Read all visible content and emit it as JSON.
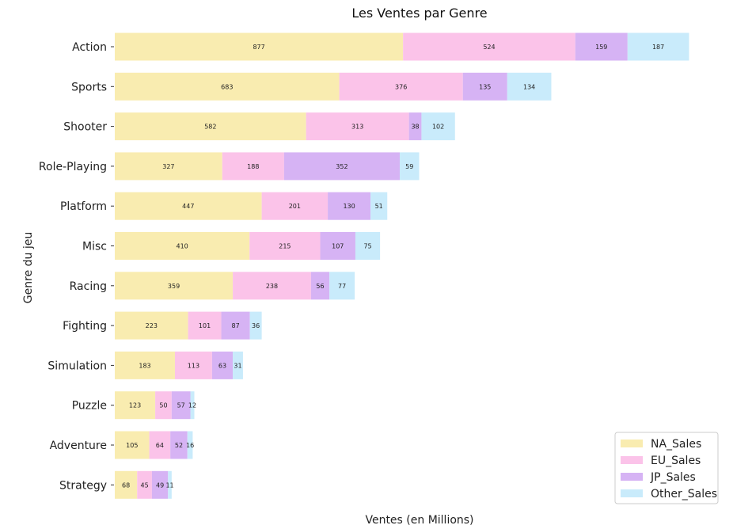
{
  "chart_data": {
    "type": "bar",
    "orientation": "horizontal",
    "stacked": true,
    "title": "Les Ventes par Genre",
    "xlabel": "Ventes (en Millions)",
    "ylabel": "Genre du jeu",
    "categories": [
      "Action",
      "Sports",
      "Shooter",
      "Role-Playing",
      "Platform",
      "Misc",
      "Racing",
      "Fighting",
      "Simulation",
      "Puzzle",
      "Adventure",
      "Strategy"
    ],
    "series": [
      {
        "name": "NA_Sales",
        "color": "#f9ecb0",
        "values": [
          877,
          683,
          582,
          327,
          447,
          410,
          359,
          223,
          183,
          123,
          105,
          68
        ]
      },
      {
        "name": "EU_Sales",
        "color": "#fbc3e9",
        "values": [
          524,
          376,
          313,
          188,
          201,
          215,
          238,
          101,
          113,
          50,
          64,
          45
        ]
      },
      {
        "name": "JP_Sales",
        "color": "#d6b3f4",
        "values": [
          159,
          135,
          38,
          352,
          130,
          107,
          56,
          87,
          63,
          57,
          52,
          49
        ]
      },
      {
        "name": "Other_Sales",
        "color": "#c9ebfb",
        "values": [
          187,
          134,
          102,
          59,
          51,
          75,
          77,
          36,
          31,
          12,
          16,
          11
        ]
      }
    ],
    "xlim": [
      0,
      1770
    ],
    "grid": false,
    "legend_position": "bottom-right"
  }
}
